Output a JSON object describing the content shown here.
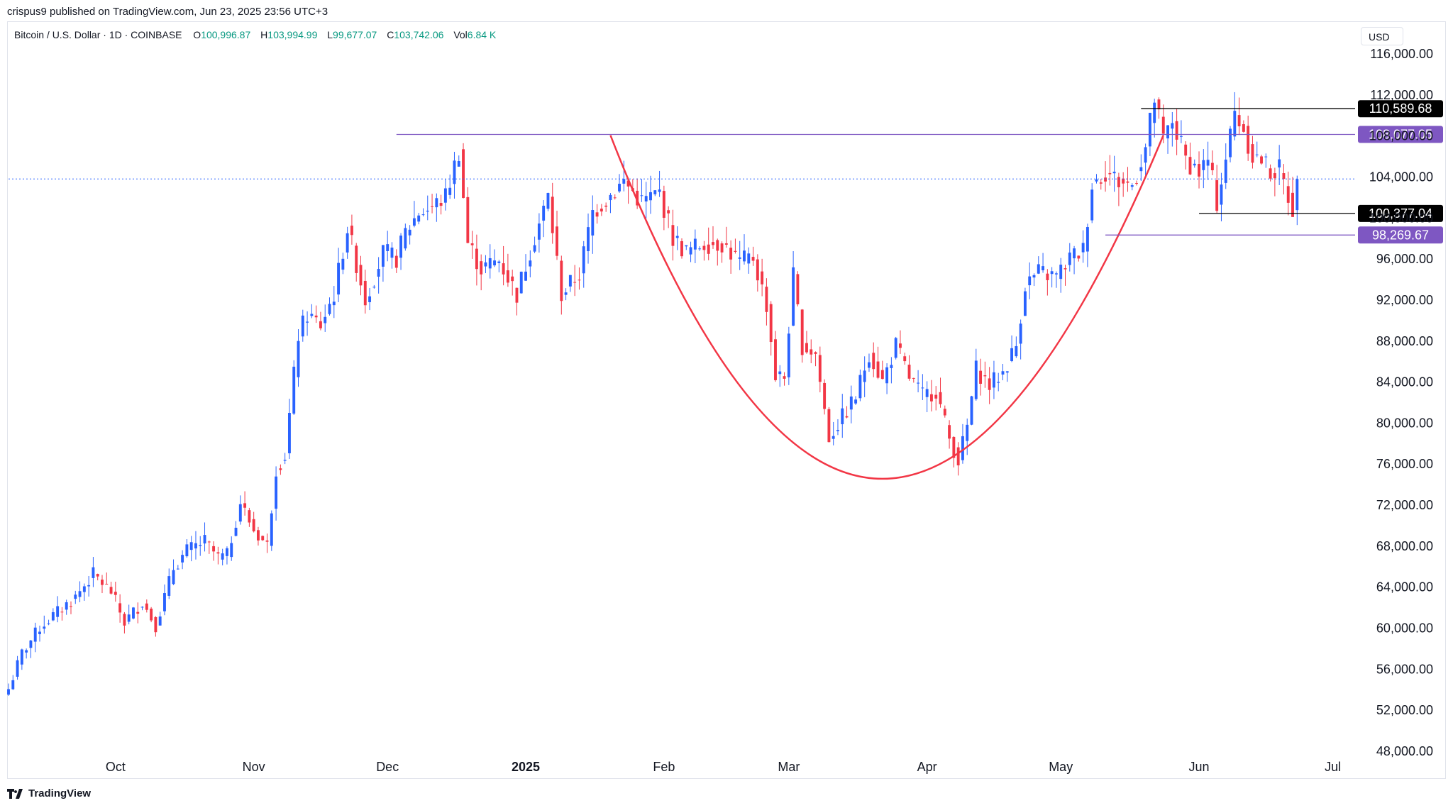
{
  "header": {
    "published_line": "crispus9 published on TradingView.com, Jun 23, 2025 23:56 UTC+3",
    "symbol": "Bitcoin / U.S. Dollar · 1D · COINBASE",
    "o_label": "O",
    "o_value": "100,996.87",
    "h_label": "H",
    "h_value": "103,994.99",
    "l_label": "L",
    "l_value": "99,677.07",
    "c_label": "C",
    "c_value": "103,742.06",
    "vol_label": "Vol",
    "vol_value": "6.84 K",
    "currency": "USD"
  },
  "brand": {
    "name": "TradingView",
    "logo_icon": "tradingview-logo-icon"
  },
  "colors": {
    "up": "#2962ff",
    "down": "#f23645",
    "cup": "#f23645",
    "resistance": "#7e57c2",
    "black": "#000000",
    "last_price_line": "#2962ff"
  },
  "chart_data": {
    "type": "candlestick",
    "ylim": [
      48000,
      116000
    ],
    "y_ticks": [
      "116,000.00",
      "112,000.00",
      "108,000.00",
      "104,000.00",
      "100,000.00",
      "96,000.00",
      "92,000.00",
      "88,000.00",
      "84,000.00",
      "80,000.00",
      "76,000.00",
      "72,000.00",
      "68,000.00",
      "64,000.00",
      "60,000.00",
      "56,000.00",
      "52,000.00",
      "48,000.00"
    ],
    "x_range": [
      "2024-09-07",
      "2025-07-06"
    ],
    "x_ticks": [
      {
        "label": "Oct",
        "date": "2024-10-01",
        "bold": false
      },
      {
        "label": "Nov",
        "date": "2024-11-01",
        "bold": false
      },
      {
        "label": "Dec",
        "date": "2024-12-01",
        "bold": false
      },
      {
        "label": "2025",
        "date": "2025-01-01",
        "bold": true
      },
      {
        "label": "Feb",
        "date": "2025-02-01",
        "bold": false
      },
      {
        "label": "Mar",
        "date": "2025-03-01",
        "bold": false
      },
      {
        "label": "Apr",
        "date": "2025-04-01",
        "bold": false
      },
      {
        "label": "May",
        "date": "2025-05-01",
        "bold": false
      },
      {
        "label": "Jun",
        "date": "2025-06-01",
        "bold": false
      },
      {
        "label": "Jul",
        "date": "2025-07-01",
        "bold": false
      }
    ],
    "closes": [
      [
        "2024-09-07",
        54000
      ],
      [
        "2024-09-10",
        57500
      ],
      [
        "2024-09-14",
        60000
      ],
      [
        "2024-09-18",
        61500
      ],
      [
        "2024-09-22",
        63000
      ],
      [
        "2024-09-26",
        65200
      ],
      [
        "2024-09-30",
        63500
      ],
      [
        "2024-10-03",
        60500
      ],
      [
        "2024-10-07",
        62500
      ],
      [
        "2024-10-10",
        60200
      ],
      [
        "2024-10-14",
        65800
      ],
      [
        "2024-10-17",
        67500
      ],
      [
        "2024-10-21",
        68400
      ],
      [
        "2024-10-24",
        66800
      ],
      [
        "2024-10-26",
        67000
      ],
      [
        "2024-10-29",
        72200
      ],
      [
        "2024-11-01",
        69500
      ],
      [
        "2024-11-04",
        68000
      ],
      [
        "2024-11-06",
        75500
      ],
      [
        "2024-11-08",
        76800
      ],
      [
        "2024-11-11",
        88500
      ],
      [
        "2024-11-13",
        90500
      ],
      [
        "2024-11-16",
        89500
      ],
      [
        "2024-11-19",
        92500
      ],
      [
        "2024-11-22",
        99000
      ],
      [
        "2024-11-26",
        92000
      ],
      [
        "2024-11-30",
        96500
      ],
      [
        "2024-12-03",
        96000
      ],
      [
        "2024-12-05",
        98500
      ],
      [
        "2024-12-08",
        100500
      ],
      [
        "2024-12-11",
        101000
      ],
      [
        "2024-12-14",
        102000
      ],
      [
        "2024-12-17",
        106500
      ],
      [
        "2024-12-19",
        97500
      ],
      [
        "2024-12-22",
        95000
      ],
      [
        "2024-12-26",
        95800
      ],
      [
        "2024-12-30",
        92500
      ],
      [
        "2025-01-02",
        96800
      ],
      [
        "2025-01-06",
        102000
      ],
      [
        "2025-01-09",
        92500
      ],
      [
        "2025-01-13",
        94500
      ],
      [
        "2025-01-16",
        100500
      ],
      [
        "2025-01-20",
        102200
      ],
      [
        "2025-01-23",
        103500
      ],
      [
        "2025-01-27",
        101500
      ],
      [
        "2025-01-31",
        102400
      ],
      [
        "2025-02-03",
        98000
      ],
      [
        "2025-02-06",
        96600
      ],
      [
        "2025-02-10",
        97500
      ],
      [
        "2025-02-14",
        97500
      ],
      [
        "2025-02-18",
        95600
      ],
      [
        "2025-02-21",
        96100
      ],
      [
        "2025-02-24",
        91500
      ],
      [
        "2025-02-26",
        84500
      ],
      [
        "2025-02-28",
        84400
      ],
      [
        "2025-03-02",
        94200
      ],
      [
        "2025-03-04",
        87500
      ],
      [
        "2025-03-07",
        86700
      ],
      [
        "2025-03-10",
        78500
      ],
      [
        "2025-03-13",
        80500
      ],
      [
        "2025-03-16",
        82500
      ],
      [
        "2025-03-19",
        86800
      ],
      [
        "2025-03-22",
        84000
      ],
      [
        "2025-03-25",
        87500
      ],
      [
        "2025-03-28",
        84400
      ],
      [
        "2025-03-31",
        82600
      ],
      [
        "2025-04-03",
        83100
      ],
      [
        "2025-04-06",
        78400
      ],
      [
        "2025-04-08",
        76300
      ],
      [
        "2025-04-10",
        79600
      ],
      [
        "2025-04-12",
        85200
      ],
      [
        "2025-04-15",
        83600
      ],
      [
        "2025-04-18",
        84900
      ],
      [
        "2025-04-21",
        87500
      ],
      [
        "2025-04-23",
        93500
      ],
      [
        "2025-04-26",
        94600
      ],
      [
        "2025-04-30",
        94200
      ],
      [
        "2025-05-03",
        96000
      ],
      [
        "2025-05-06",
        96800
      ],
      [
        "2025-05-08",
        103200
      ],
      [
        "2025-05-11",
        104500
      ],
      [
        "2025-05-14",
        103500
      ],
      [
        "2025-05-17",
        103100
      ],
      [
        "2025-05-20",
        106800
      ],
      [
        "2025-05-22",
        111500
      ],
      [
        "2025-05-24",
        107500
      ],
      [
        "2025-05-26",
        109400
      ],
      [
        "2025-05-29",
        105700
      ],
      [
        "2025-06-01",
        104500
      ],
      [
        "2025-06-03",
        105500
      ],
      [
        "2025-06-05",
        101500
      ],
      [
        "2025-06-07",
        105800
      ],
      [
        "2025-06-09",
        110200
      ],
      [
        "2025-06-11",
        108600
      ],
      [
        "2025-06-13",
        106000
      ],
      [
        "2025-06-15",
        105600
      ],
      [
        "2025-06-17",
        104500
      ],
      [
        "2025-06-19",
        104600
      ],
      [
        "2025-06-20",
        103300
      ],
      [
        "2025-06-22",
        100900
      ],
      [
        "2025-06-23",
        103742
      ]
    ],
    "level_lines": [
      {
        "name": "resistance-line",
        "value": 108077.05,
        "label": "108,077.05",
        "from": "2024-12-03",
        "color": "purple"
      },
      {
        "name": "upper-high-line",
        "value": 110589.68,
        "label": "110,589.68",
        "from": "2025-05-19",
        "color": "black"
      },
      {
        "name": "handle-support-line",
        "value": 100377.04,
        "label": "100,377.04",
        "from": "2025-06-01",
        "color": "black"
      },
      {
        "name": "lower-support-line",
        "value": 98269.67,
        "label": "98,269.67",
        "from": "2025-05-11",
        "color": "purple"
      }
    ],
    "last_price": 103742.06,
    "cup_curve": [
      {
        "date": "2025-01-20",
        "value": 108000
      },
      {
        "date": "2025-03-22",
        "value": 74500
      },
      {
        "date": "2025-05-24",
        "value": 108000
      }
    ],
    "grid": false
  }
}
